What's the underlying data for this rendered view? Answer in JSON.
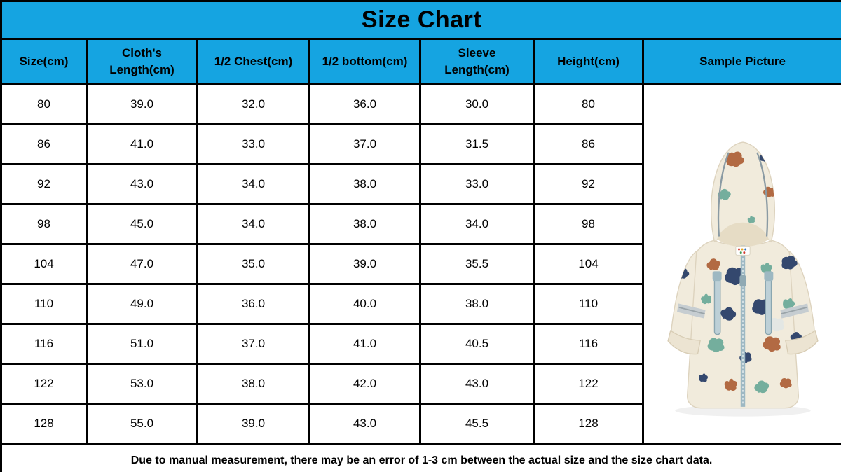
{
  "title": "Size Chart",
  "table": {
    "columns": [
      "Size(cm)",
      "Cloth's Length(cm)",
      "1/2 Chest(cm)",
      "1/2 bottom(cm)",
      "Sleeve Length(cm)",
      "Height(cm)",
      "Sample Picture"
    ],
    "rows": [
      [
        "80",
        "39.0",
        "32.0",
        "36.0",
        "30.0",
        "80"
      ],
      [
        "86",
        "41.0",
        "33.0",
        "37.0",
        "31.5",
        "86"
      ],
      [
        "92",
        "43.0",
        "34.0",
        "38.0",
        "33.0",
        "92"
      ],
      [
        "98",
        "45.0",
        "34.0",
        "38.0",
        "34.0",
        "98"
      ],
      [
        "104",
        "47.0",
        "35.0",
        "39.0",
        "35.5",
        "104"
      ],
      [
        "110",
        "49.0",
        "36.0",
        "40.0",
        "38.0",
        "110"
      ],
      [
        "116",
        "51.0",
        "37.0",
        "41.0",
        "40.5",
        "116"
      ],
      [
        "122",
        "53.0",
        "38.0",
        "42.0",
        "43.0",
        "122"
      ],
      [
        "128",
        "55.0",
        "39.0",
        "43.0",
        "45.5",
        "128"
      ]
    ]
  },
  "footer": {
    "note": "Due to manual measurement, there may be an error of 1-3 cm between the actual size and the size chart data."
  },
  "sample_picture": {
    "description": "cream hooded kids jacket with multicolor print"
  },
  "colors": {
    "header_bg": "#15a4e1",
    "border": "#000000",
    "text": "#000000",
    "jacket_cream": "#f1ebdc",
    "jacket_shade": "#e6dcc5",
    "print_navy": "#34486e",
    "print_teal": "#74ae9d",
    "print_rust": "#b26a43",
    "zipper_blue": "#9db8c3",
    "reflective_gray": "#c6cdd1"
  }
}
